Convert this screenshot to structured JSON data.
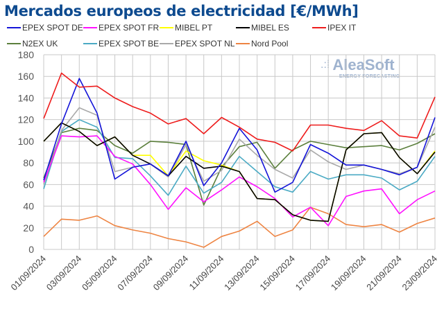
{
  "chart_data": {
    "type": "line",
    "title": "Mercados europeos de electricidad [€/MWh]",
    "xlabel": "",
    "ylabel": "",
    "ylim": [
      0,
      180
    ],
    "yticks": [
      0,
      20,
      40,
      60,
      80,
      100,
      120,
      140,
      160,
      180
    ],
    "grid": true,
    "legend_position": "top",
    "x": [
      "01/09/2024",
      "02/09/2024",
      "03/09/2024",
      "04/09/2024",
      "05/09/2024",
      "06/09/2024",
      "07/09/2024",
      "08/09/2024",
      "09/09/2024",
      "10/09/2024",
      "11/09/2024",
      "12/09/2024",
      "13/09/2024",
      "14/09/2024",
      "15/09/2024",
      "16/09/2024",
      "17/09/2024",
      "18/09/2024",
      "19/09/2024",
      "20/09/2024",
      "21/09/2024",
      "22/09/2024",
      "23/09/2024"
    ],
    "xtick_labels": [
      "01/09/2024",
      "03/09/2024",
      "05/09/2024",
      "07/09/2024",
      "09/09/2024",
      "11/09/2024",
      "13/09/2024",
      "15/09/2024",
      "17/09/2024",
      "19/09/2024",
      "21/09/2024",
      "23/09/2024"
    ],
    "series": [
      {
        "name": "EPEX SPOT DE",
        "color": "#1414d8",
        "values": [
          64,
          116,
          158,
          126,
          65,
          76,
          79,
          68,
          100,
          59,
          80,
          112,
          92,
          53,
          62,
          97,
          89,
          78,
          78,
          74,
          69,
          76,
          122
        ]
      },
      {
        "name": "EPEX SPOT FR",
        "color": "#ff10ff",
        "values": [
          62,
          105,
          104,
          105,
          86,
          79,
          60,
          37,
          57,
          44,
          55,
          67,
          58,
          47,
          30,
          39,
          22,
          49,
          54,
          56,
          33,
          46,
          54
        ]
      },
      {
        "name": "MIBEL PT",
        "color": "#ffff00",
        "values": [
          100,
          117,
          109,
          96,
          104,
          87,
          87,
          68,
          91,
          82,
          78,
          72,
          47,
          46,
          32,
          27,
          26,
          92,
          107,
          108,
          85,
          70,
          91
        ]
      },
      {
        "name": "MIBEL ES",
        "color": "#000000",
        "values": [
          100,
          117,
          109,
          96,
          104,
          87,
          79,
          68,
          86,
          75,
          77,
          72,
          47,
          46,
          32,
          27,
          26,
          92,
          107,
          108,
          85,
          70,
          90
        ]
      },
      {
        "name": "IPEX IT",
        "color": "#ee1c1c",
        "values": [
          121,
          163,
          150,
          151,
          140,
          132,
          126,
          116,
          121,
          107,
          122,
          113,
          102,
          99,
          91,
          115,
          115,
          112,
          110,
          119,
          105,
          103,
          141
        ]
      },
      {
        "name": "N2EX UK",
        "color": "#5b7f3c",
        "values": [
          66,
          108,
          112,
          110,
          96,
          89,
          100,
          99,
          97,
          41,
          76,
          95,
          99,
          75,
          92,
          100,
          97,
          94,
          95,
          96,
          92,
          98,
          107
        ]
      },
      {
        "name": "EPEX SPOT BE",
        "color": "#4aaac4",
        "values": [
          56,
          109,
          120,
          113,
          85,
          84,
          68,
          50,
          77,
          52,
          62,
          86,
          72,
          58,
          53,
          72,
          65,
          69,
          69,
          66,
          55,
          63,
          86
        ]
      },
      {
        "name": "EPEX SPOT NL",
        "color": "#a9a9a9",
        "values": [
          60,
          110,
          131,
          124,
          72,
          76,
          79,
          67,
          97,
          63,
          73,
          102,
          87,
          74,
          66,
          92,
          81,
          74,
          78,
          74,
          70,
          76,
          113
        ]
      },
      {
        "name": "Nord Pool",
        "color": "#ee8442",
        "values": [
          12,
          28,
          27,
          31,
          22,
          18,
          15,
          10,
          7,
          2,
          12,
          17,
          26,
          12,
          18,
          39,
          33,
          23,
          21,
          23,
          16,
          24,
          29
        ]
      }
    ]
  },
  "logo": {
    "name": "AleaSoft",
    "tagline": "ENERGY FORECASTING"
  }
}
